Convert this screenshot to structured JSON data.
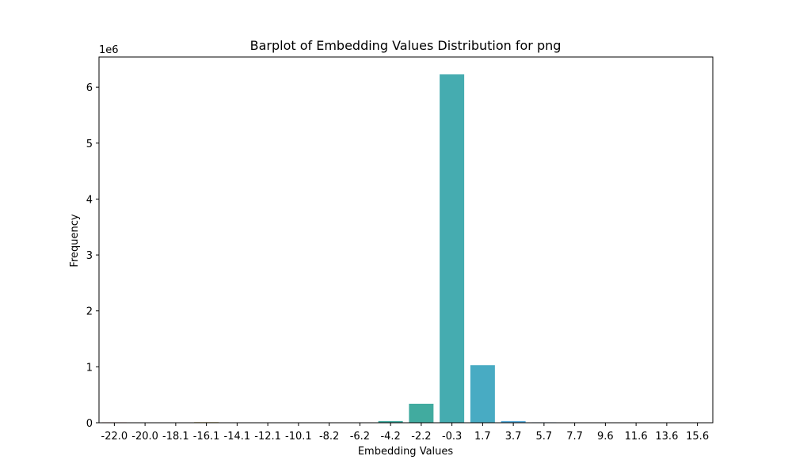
{
  "chart_data": {
    "type": "bar",
    "title": "Barplot of Embedding Values Distribution for png",
    "xlabel": "Embedding Values",
    "ylabel": "Frequency",
    "y_scale_label": "1e6",
    "ylim": [
      0,
      6.54
    ],
    "yticks": [
      "0",
      "1",
      "2",
      "3",
      "4",
      "5",
      "6"
    ],
    "grid": false,
    "categories": [
      "-22.0",
      "-20.0",
      "-18.1",
      "-16.1",
      "-14.1",
      "-12.1",
      "-10.1",
      "-8.2",
      "-6.2",
      "-4.2",
      "-2.2",
      "-0.3",
      "1.7",
      "3.7",
      "5.7",
      "7.7",
      "9.6",
      "11.6",
      "13.6",
      "15.6"
    ],
    "values": [
      0.008,
      0.002,
      0.002,
      0.01,
      0.002,
      0.001,
      0.001,
      0.001,
      0.002,
      0.03,
      0.34,
      6.23,
      1.03,
      0.03,
      0.008,
      0.002,
      0.001,
      0.001,
      0.001,
      0.006
    ],
    "colors": [
      "#e1736f",
      "#d27f4e",
      "#bd8a3b",
      "#a99337",
      "#939a36",
      "#76a136",
      "#4aa744",
      "#3aa876",
      "#3ca88d",
      "#3ea99c",
      "#41ab9f",
      "#45acb0",
      "#48abc3",
      "#52a8d6",
      "#6ca1e8",
      "#979aec",
      "#b78fe9",
      "#d386e8",
      "#e17cce",
      "#e67597"
    ]
  }
}
